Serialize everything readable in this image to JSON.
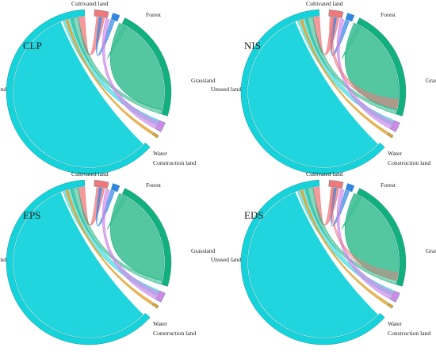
{
  "figure": {
    "panels": [
      {
        "title": "CLP"
      },
      {
        "title": "NIS"
      },
      {
        "title": "EPS"
      },
      {
        "title": "EDS"
      }
    ]
  },
  "categories": [
    {
      "name": "Cultivated land",
      "color": "#f0787b"
    },
    {
      "name": "Forest",
      "color": "#2f86e4"
    },
    {
      "name": "Grassland",
      "color": "#12b07c"
    },
    {
      "name": "Water",
      "color": "#cf8ae8"
    },
    {
      "name": "Construction land",
      "color": "#e2a22c"
    },
    {
      "name": "Unused land",
      "color": "#14d3db"
    }
  ]
}
